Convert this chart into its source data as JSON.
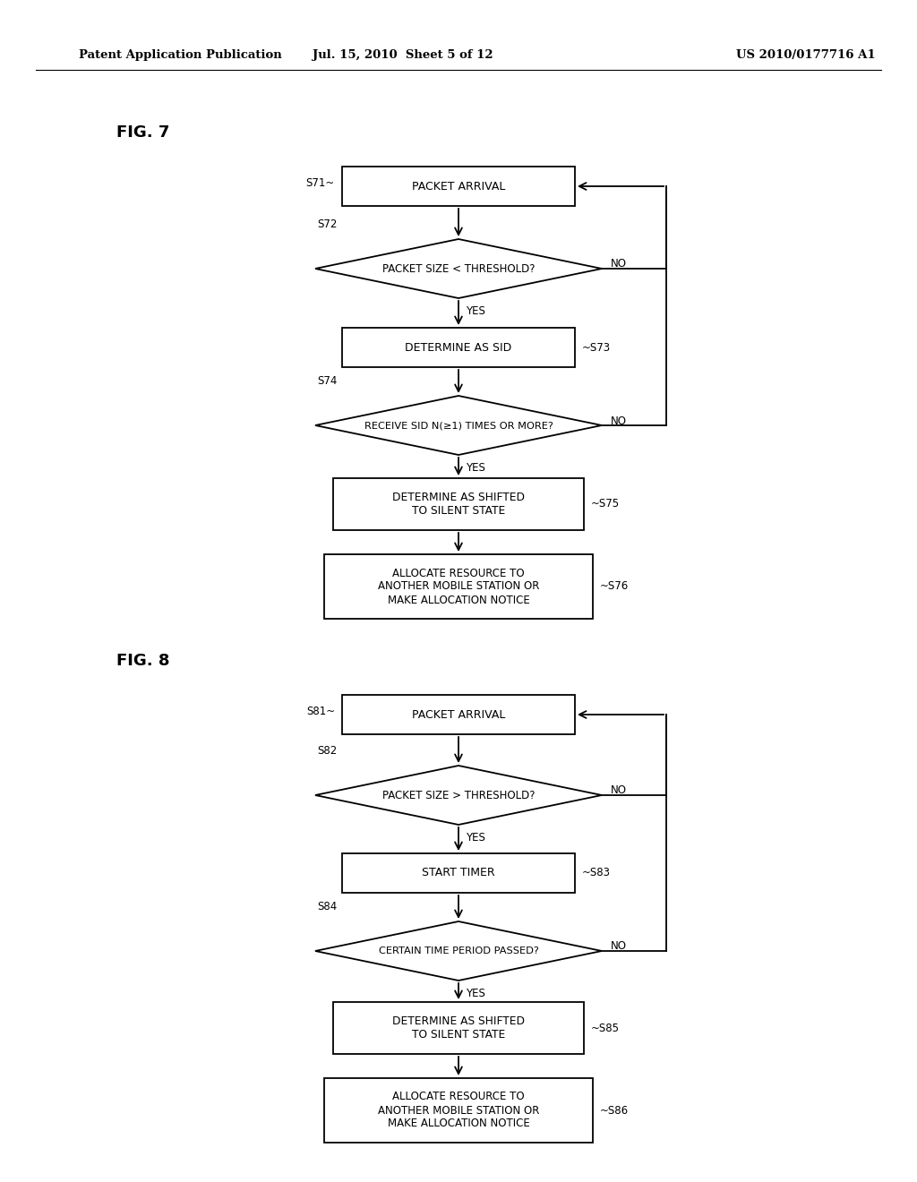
{
  "background_color": "#ffffff",
  "header_left": "Patent Application Publication",
  "header_center": "Jul. 15, 2010  Sheet 5 of 12",
  "header_right": "US 2010/0177716 A1",
  "fig7_label": "FIG. 7",
  "fig8_label": "FIG. 8"
}
